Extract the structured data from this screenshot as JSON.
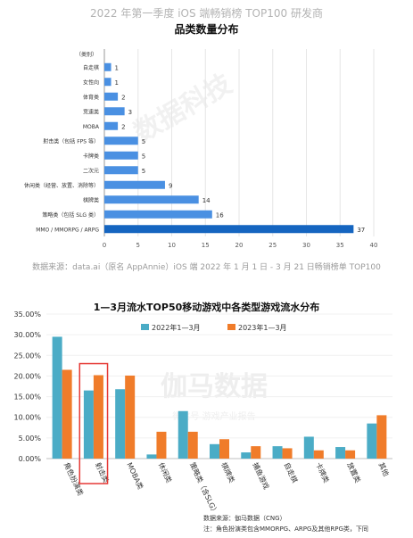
{
  "chart_data": [
    {
      "type": "bar",
      "orientation": "horizontal",
      "supertitle": "2022 年第一季度 iOS 端畅销榜 TOP100 研发商",
      "title": "品类数量分布",
      "category_header": "（类别）",
      "categories": [
        "自走棋",
        "女性向",
        "体育类",
        "竞速类",
        "MOBA",
        "射击类（包括 FPS 等）",
        "卡牌类",
        "二次元",
        "休闲类（经营、放置、消除等）",
        "棋牌类",
        "策略类（包括 SLG 类）",
        "MMO / MMORPG / ARPG"
      ],
      "values": [
        1,
        1,
        2,
        3,
        2,
        5,
        5,
        5,
        9,
        14,
        16,
        37
      ],
      "xlim": [
        0,
        40
      ],
      "xticks": [
        "0",
        "5",
        "10",
        "15",
        "20",
        "25",
        "30",
        "35",
        "40"
      ],
      "grid": true,
      "colors": {
        "bar_light": "#4a90e2",
        "bar_dark": "#1565c0"
      },
      "source": "数据来源：data.ai（原名 AppAnnie）iOS 端 2022 年 1 月 1 日 - 3 月 21 日畅销榜单 TOP100"
    },
    {
      "type": "bar",
      "title": "1—3月流水TOP50移动游戏中各类型游戏流水分布",
      "categories": [
        "角色扮演类",
        "射击类",
        "MOBA类",
        "休闲类",
        "策略类（含SLG）",
        "棋牌类",
        "捕鱼游戏",
        "自走棋",
        "卡牌类",
        "放置类",
        "其他"
      ],
      "series": [
        {
          "name": "2022年1—3月",
          "values": [
            29.5,
            16.5,
            16.8,
            1.0,
            11.5,
            3.5,
            1.5,
            3.0,
            5.3,
            2.8,
            8.5
          ],
          "color": "#4bacc6"
        },
        {
          "name": "2023年1—3月",
          "values": [
            21.5,
            20.2,
            20.1,
            6.5,
            6.5,
            4.7,
            3.0,
            2.5,
            2.0,
            2.0,
            10.5
          ],
          "color": "#f07c2a"
        }
      ],
      "ylim": [
        0,
        35
      ],
      "yticks": [
        "0.00%",
        "5.00%",
        "10.00%",
        "15.00%",
        "20.00%",
        "25.00%",
        "30.00%",
        "35.00%"
      ],
      "legend": "top-center",
      "highlight_category": "射击类",
      "watermark": {
        "main": "伽马数据",
        "sub": "微信号 游戏产业报告"
      },
      "source_line1": "数据来源：伽马数据（CNG）",
      "source_line2": "注：角色扮演类包含MMORPG、ARPG及其他RPG类，下同"
    }
  ]
}
